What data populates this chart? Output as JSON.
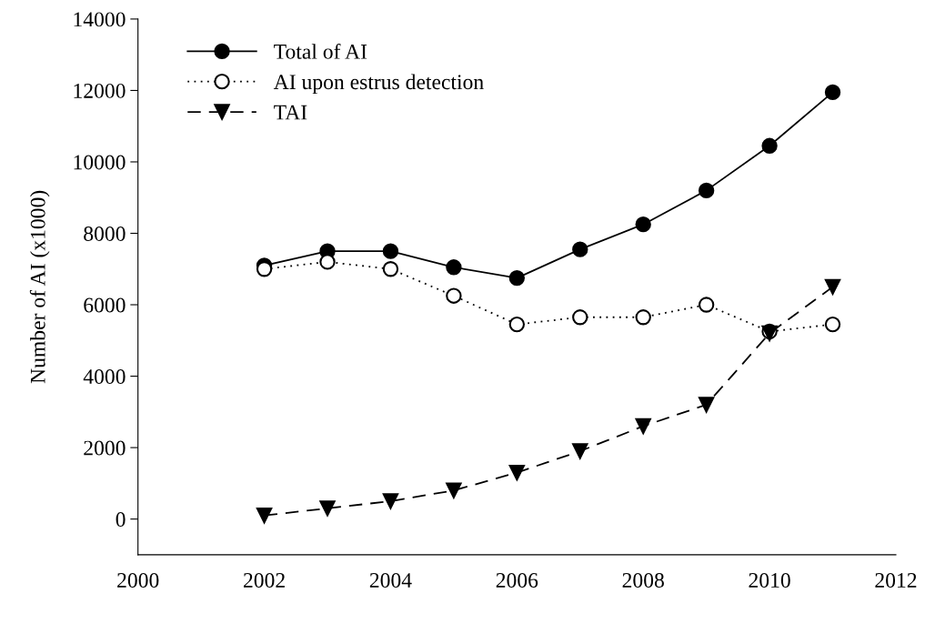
{
  "chart_data": {
    "type": "line",
    "ylabel": "Number of AI (x1000)",
    "x": [
      2002,
      2003,
      2004,
      2005,
      2006,
      2007,
      2008,
      2009,
      2010,
      2011
    ],
    "series": [
      {
        "name": "Total of AI",
        "color": "#000000",
        "marker": "circle",
        "line_style": "solid",
        "values": [
          7100,
          7500,
          7500,
          7050,
          6750,
          7550,
          8250,
          9200,
          10450,
          11950
        ]
      },
      {
        "name": "AI upon estrus detection",
        "color": "#000000",
        "marker": "circle",
        "line_style": "dotted",
        "values": [
          7000,
          7200,
          7000,
          6250,
          5450,
          5650,
          5650,
          6000,
          5250,
          5450
        ]
      },
      {
        "name": "TAI",
        "color": "#000000",
        "marker": "triangle",
        "line_style": "dashed",
        "values": [
          100,
          300,
          500,
          800,
          1300,
          1900,
          2600,
          3200,
          5200,
          6500
        ]
      }
    ],
    "xlim": [
      2000,
      2012
    ],
    "xticks": [
      2000,
      2002,
      2004,
      2006,
      2008,
      2010,
      2012
    ],
    "ylim": [
      -1000,
      14000
    ],
    "yticks": [
      0,
      2000,
      4000,
      6000,
      8000,
      10000,
      12000,
      14000
    ],
    "grid": false,
    "legend": "top left"
  }
}
